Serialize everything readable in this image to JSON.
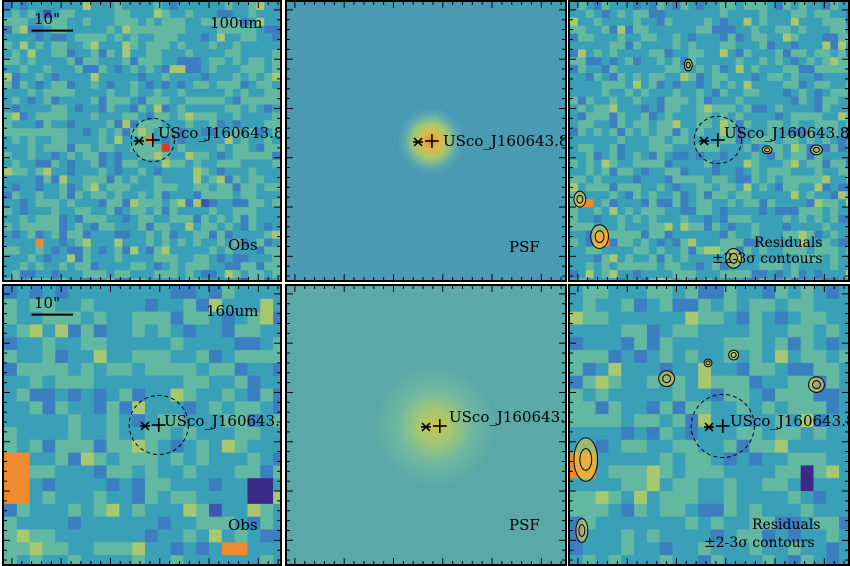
{
  "figure": {
    "scale_bar_label": "10\"",
    "source_label": "USco_J160643.8",
    "rows": [
      {
        "band": "100um",
        "panels": {
          "obs": {
            "label": "Obs"
          },
          "psf": {
            "label": "PSF"
          },
          "residuals": {
            "label": "Residuals",
            "sublabel": "±2-3σ contours"
          }
        }
      },
      {
        "band": "160um",
        "panels": {
          "obs": {
            "label": "Obs"
          },
          "psf": {
            "label": "PSF"
          },
          "residuals": {
            "label": "Residuals",
            "sublabel": "±2-3σ contours"
          }
        }
      }
    ]
  },
  "colors": {
    "background_blue": "#3b82a8",
    "colormap": [
      "#3a2a8a",
      "#3d55b8",
      "#3b7fc0",
      "#3aa0b8",
      "#62b8a0",
      "#a8c870",
      "#e0c848",
      "#f08a30",
      "#d83a28"
    ],
    "psf_core": "#f0a040"
  }
}
